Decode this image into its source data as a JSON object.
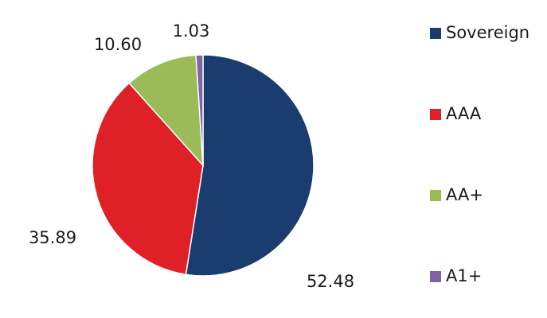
{
  "chart_data": {
    "type": "pie",
    "categories": [
      "Sovereign",
      "AAA",
      "AA+",
      "A1+"
    ],
    "values": [
      52.48,
      35.89,
      10.6,
      1.03
    ],
    "value_labels": [
      "52.48",
      "35.89",
      "10.60",
      "1.03"
    ],
    "colors": [
      "#1b3c6f",
      "#e02027",
      "#9bbb59",
      "#8064a2"
    ],
    "legend": "right"
  }
}
